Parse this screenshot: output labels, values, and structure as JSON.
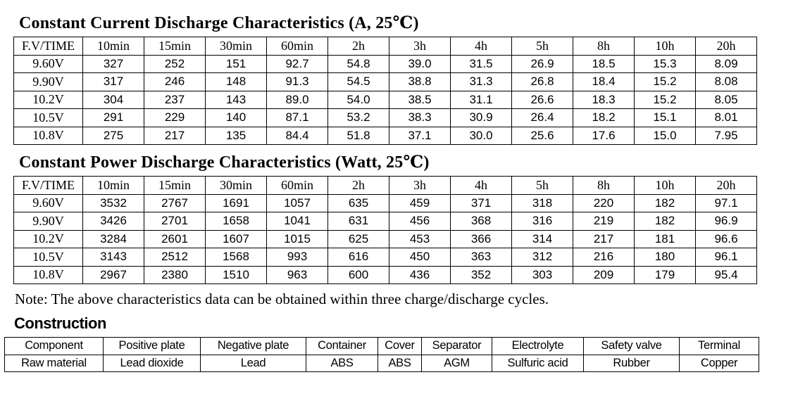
{
  "colors": {
    "text": "#000000",
    "border": "#000000",
    "background": "#ffffff"
  },
  "current_table": {
    "title": "Constant Current Discharge Characteristics (A, 25℃)",
    "headers": [
      "F.V/TIME",
      "10min",
      "15min",
      "30min",
      "60min",
      "2h",
      "3h",
      "4h",
      "5h",
      "8h",
      "10h",
      "20h"
    ],
    "rows": [
      [
        "9.60V",
        "327",
        "252",
        "151",
        "92.7",
        "54.8",
        "39.0",
        "31.5",
        "26.9",
        "18.5",
        "15.3",
        "8.09"
      ],
      [
        "9.90V",
        "317",
        "246",
        "148",
        "91.3",
        "54.5",
        "38.8",
        "31.3",
        "26.8",
        "18.4",
        "15.2",
        "8.08"
      ],
      [
        "10.2V",
        "304",
        "237",
        "143",
        "89.0",
        "54.0",
        "38.5",
        "31.1",
        "26.6",
        "18.3",
        "15.2",
        "8.05"
      ],
      [
        "10.5V",
        "291",
        "229",
        "140",
        "87.1",
        "53.2",
        "38.3",
        "30.9",
        "26.4",
        "18.2",
        "15.1",
        "8.01"
      ],
      [
        "10.8V",
        "275",
        "217",
        "135",
        "84.4",
        "51.8",
        "37.1",
        "30.0",
        "25.6",
        "17.6",
        "15.0",
        "7.95"
      ]
    ]
  },
  "power_table": {
    "title": "Constant Power Discharge Characteristics (Watt, 25℃)",
    "headers": [
      "F.V/TIME",
      "10min",
      "15min",
      "30min",
      "60min",
      "2h",
      "3h",
      "4h",
      "5h",
      "8h",
      "10h",
      "20h"
    ],
    "rows": [
      [
        "9.60V",
        "3532",
        "2767",
        "1691",
        "1057",
        "635",
        "459",
        "371",
        "318",
        "220",
        "182",
        "97.1"
      ],
      [
        "9.90V",
        "3426",
        "2701",
        "1658",
        "1041",
        "631",
        "456",
        "368",
        "316",
        "219",
        "182",
        "96.9"
      ],
      [
        "10.2V",
        "3284",
        "2601",
        "1607",
        "1015",
        "625",
        "453",
        "366",
        "314",
        "217",
        "181",
        "96.6"
      ],
      [
        "10.5V",
        "3143",
        "2512",
        "1568",
        "993",
        "616",
        "450",
        "363",
        "312",
        "216",
        "180",
        "96.1"
      ],
      [
        "10.8V",
        "2967",
        "2380",
        "1510",
        "963",
        "600",
        "436",
        "352",
        "303",
        "209",
        "179",
        "95.4"
      ]
    ]
  },
  "note": "Note: The above characteristics data can be obtained within three charge/discharge cycles.",
  "construction": {
    "title": "Construction",
    "headers": [
      "Component",
      "Positive plate",
      "Negative plate",
      "Container",
      "Cover",
      "Separator",
      "Electrolyte",
      "Safety valve",
      "Terminal"
    ],
    "rows": [
      [
        "Raw material",
        "Lead dioxide",
        "Lead",
        "ABS",
        "ABS",
        "AGM",
        "Sulfuric acid",
        "Rubber",
        "Copper"
      ]
    ]
  }
}
